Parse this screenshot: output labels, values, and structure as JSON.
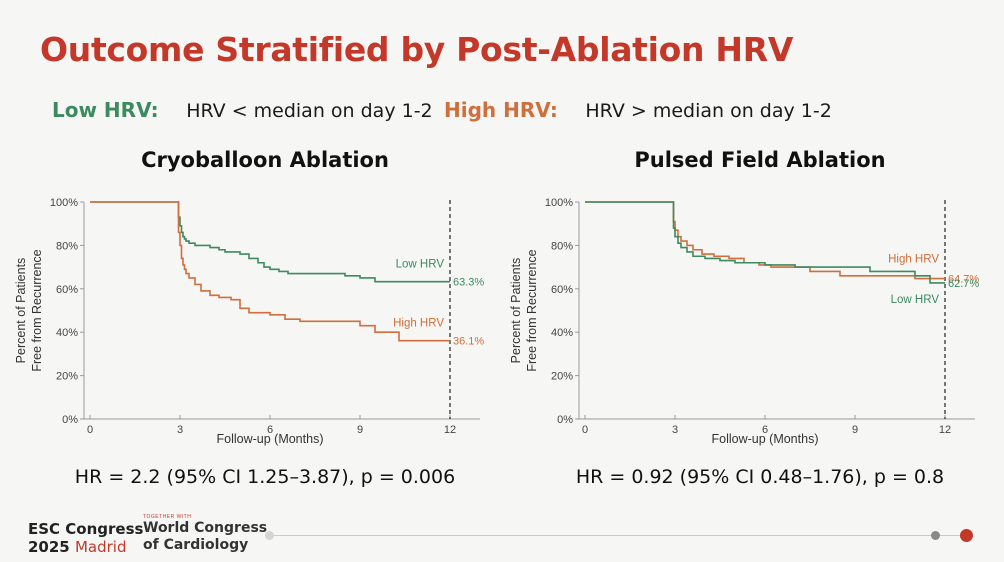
{
  "slide": {
    "title": "Outcome Stratified by Post-Ablation HRV",
    "low_key": "Low HRV:",
    "low_desc": "HRV < median on day 1-2",
    "high_key": "High HRV:",
    "high_desc": "HRV > median on day 1-2"
  },
  "colors": {
    "low": "#3d8a5f",
    "high": "#cf6f3c",
    "title": "#c4382a",
    "axis": "#9a9a9a"
  },
  "footer": {
    "esc_line1": "ESC Congress",
    "esc_year": "2025",
    "esc_city": "Madrid",
    "together": "TOGETHER WITH",
    "wcc_line1": "World Congress",
    "wcc_line2": "of Cardiology"
  },
  "chart_data": [
    {
      "type": "line",
      "title": "Cryoballoon Ablation",
      "xlabel": "Follow-up (Months)",
      "ylabel_line1": "Percent of Patients",
      "ylabel_line2": "Free from Recurrence",
      "xticks": [
        0,
        3,
        6,
        9,
        12
      ],
      "yticks": [
        0,
        20,
        40,
        60,
        80,
        100
      ],
      "ytick_labels": [
        "0%",
        "20%",
        "40%",
        "60%",
        "80%",
        "100%"
      ],
      "xlim": [
        0,
        13
      ],
      "ylim": [
        0,
        100
      ],
      "cutoff_month": 12,
      "series": [
        {
          "name": "Low HRV",
          "color_key": "low",
          "end_label": "63.3%",
          "x": [
            0,
            2.9,
            2.95,
            3.0,
            3.05,
            3.1,
            3.15,
            3.2,
            3.3,
            3.5,
            4.0,
            4.3,
            4.5,
            5.0,
            5.3,
            5.6,
            5.8,
            6.0,
            6.3,
            6.6,
            7.0,
            8.5,
            9.0,
            9.5,
            12.0
          ],
          "y": [
            100,
            100,
            93,
            89,
            86,
            84,
            83,
            82,
            81,
            80,
            79,
            78,
            77,
            76,
            74,
            72,
            70,
            69,
            68,
            67,
            67,
            66,
            65,
            63.3,
            63.3
          ]
        },
        {
          "name": "High HRV",
          "color_key": "high",
          "end_label": "36.1%",
          "x": [
            0,
            2.9,
            2.95,
            3.0,
            3.05,
            3.1,
            3.15,
            3.2,
            3.3,
            3.5,
            3.7,
            4.0,
            4.3,
            4.7,
            5.0,
            5.3,
            6.0,
            6.5,
            7.0,
            8.0,
            9.0,
            9.5,
            10.3,
            12.0
          ],
          "y": [
            100,
            100,
            86,
            80,
            74,
            71,
            69,
            67,
            65,
            62,
            59,
            57,
            56,
            55,
            51,
            49,
            48,
            46,
            45,
            45,
            43,
            40,
            36.1,
            36.1
          ]
        }
      ],
      "hr_text": "HR = 2.2 (95% CI 1.25–3.87), p = 0.006"
    },
    {
      "type": "line",
      "title": "Pulsed Field Ablation",
      "xlabel": "Follow-up (Months)",
      "ylabel_line1": "Percent of Patients",
      "ylabel_line2": "Free from Recurrence",
      "xticks": [
        0,
        3,
        6,
        9,
        12
      ],
      "yticks": [
        0,
        20,
        40,
        60,
        80,
        100
      ],
      "ytick_labels": [
        "0%",
        "20%",
        "40%",
        "60%",
        "80%",
        "100%"
      ],
      "xlim": [
        0,
        13
      ],
      "ylim": [
        0,
        100
      ],
      "cutoff_month": 12,
      "series": [
        {
          "name": "High HRV",
          "color_key": "high",
          "end_label": "64.7%",
          "x": [
            0,
            2.9,
            2.95,
            3.0,
            3.1,
            3.2,
            3.4,
            3.6,
            3.9,
            4.3,
            4.8,
            5.3,
            5.8,
            6.2,
            7.5,
            8.5,
            11.0,
            12.0
          ],
          "y": [
            100,
            100,
            91,
            87,
            84,
            82,
            80,
            78,
            76,
            75,
            74,
            72,
            71,
            70,
            68,
            66,
            64.7,
            64.7
          ]
        },
        {
          "name": "Low HRV",
          "color_key": "low",
          "end_label": "62.7%",
          "x": [
            0,
            2.9,
            2.95,
            3.0,
            3.1,
            3.2,
            3.4,
            3.6,
            4.0,
            4.5,
            5.0,
            6.0,
            7.0,
            8.8,
            9.5,
            11.0,
            11.5,
            12.0
          ],
          "y": [
            100,
            100,
            88,
            84,
            81,
            79,
            77,
            75,
            74,
            73,
            72,
            71,
            70,
            70,
            68,
            66,
            62.7,
            62.7
          ]
        }
      ],
      "hr_text": "HR = 0.92 (95% CI 0.48–1.76), p = 0.8"
    }
  ]
}
